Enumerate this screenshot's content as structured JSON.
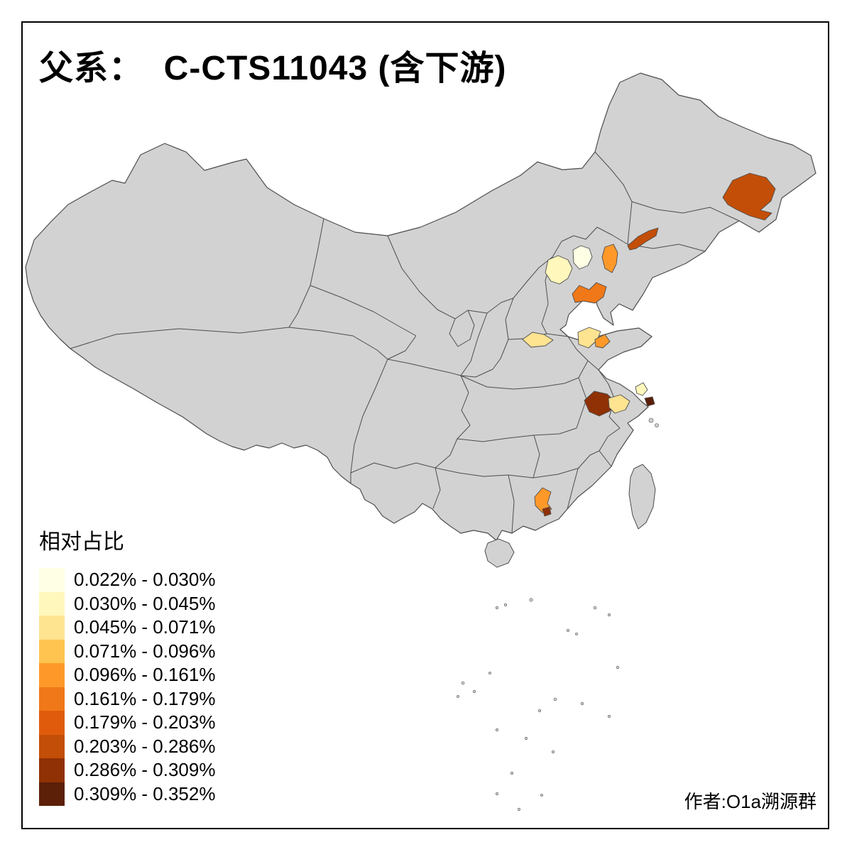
{
  "title": "父系：  C-CTS11043 (含下游)",
  "attribution": "作者:O1a溯源群",
  "legend": {
    "title": "相对占比",
    "items": [
      {
        "label": "0.022% - 0.030%",
        "color": "#FFFFE5"
      },
      {
        "label": "0.030% - 0.045%",
        "color": "#FFF7BC"
      },
      {
        "label": "0.045% - 0.071%",
        "color": "#FEE391"
      },
      {
        "label": "0.071% - 0.096%",
        "color": "#FEC44F"
      },
      {
        "label": "0.096% - 0.161%",
        "color": "#FE9929"
      },
      {
        "label": "0.161% - 0.179%",
        "color": "#F07818"
      },
      {
        "label": "0.179% - 0.203%",
        "color": "#E05C0C"
      },
      {
        "label": "0.203% - 0.286%",
        "color": "#C34E08"
      },
      {
        "label": "0.286% - 0.309%",
        "color": "#8F3105"
      },
      {
        "label": "0.309% - 0.352%",
        "color": "#5C1F08"
      }
    ]
  },
  "map": {
    "land_fill": "#D2D2D2",
    "border_color": "#4D4D4D",
    "background": "#FFFFFF",
    "regions": [
      {
        "id": "jilin-east",
        "color_index": 7
      },
      {
        "id": "liaoning-strip",
        "color_index": 7
      },
      {
        "id": "beijing",
        "color_index": 0
      },
      {
        "id": "hebei-central",
        "color_index": 1
      },
      {
        "id": "bohai-west-coast",
        "color_index": 4
      },
      {
        "id": "hebei-tianjin",
        "color_index": 5
      },
      {
        "id": "shanxi-south",
        "color_index": 2
      },
      {
        "id": "henan-east",
        "color_index": 2
      },
      {
        "id": "henan-east-orange",
        "color_index": 4
      },
      {
        "id": "anhui-central-dark",
        "color_index": 8
      },
      {
        "id": "anhui-east-pale",
        "color_index": 2
      },
      {
        "id": "jiangsu-coastal-pale",
        "color_index": 1
      },
      {
        "id": "shanghai-dark",
        "color_index": 9
      },
      {
        "id": "guangdong-central",
        "color_index": 4
      },
      {
        "id": "guangdong-dark-spot",
        "color_index": 8
      }
    ]
  }
}
